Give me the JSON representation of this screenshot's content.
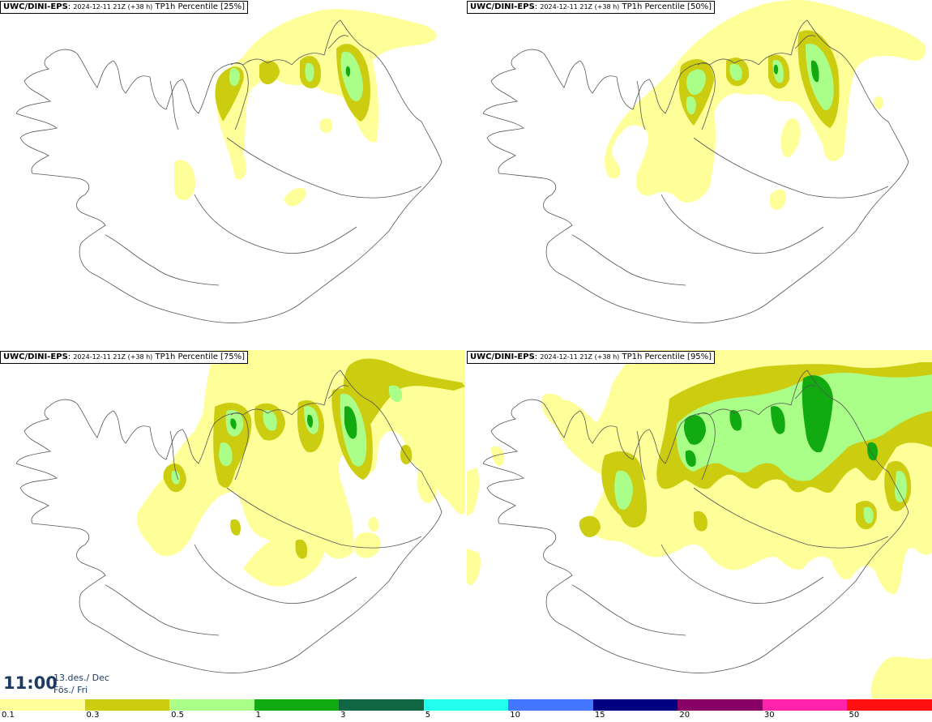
{
  "panels": [
    {
      "source": "UWC/DINI-EPS",
      "run": "2024-12-11 21Z (+38 h)",
      "product": "TP1h Percentile",
      "percentile": "[25%]"
    },
    {
      "source": "UWC/DINI-EPS",
      "run": "2024-12-11 21Z (+38 h)",
      "product": "TP1h Percentile",
      "percentile": "[50%]"
    },
    {
      "source": "UWC/DINI-EPS",
      "run": "2024-12-11 21Z (+38 h)",
      "product": "TP1h Percentile",
      "percentile": "[75%]"
    },
    {
      "source": "UWC/DINI-EPS",
      "run": "2024-12-11 21Z (+38 h)",
      "product": "TP1h Percentile",
      "percentile": "[95%]"
    }
  ],
  "valid_time": {
    "time": "11:00",
    "date": "13.des./ Dec",
    "day": "Fös./ Fri"
  },
  "legend": {
    "colors": [
      "#ffff99",
      "#cccc11",
      "#aaff88",
      "#11aa11",
      "#116644",
      "#22ffee",
      "#4477ff",
      "#000080",
      "#880066",
      "#ff22aa",
      "#ff1111"
    ],
    "labels": [
      "0.1",
      "0.3",
      "0.5",
      "1",
      "3",
      "5",
      "10",
      "15",
      "20",
      "30",
      "50"
    ]
  },
  "colors": {
    "land_outline": "#555555",
    "level1": "#ffff99",
    "level2": "#cccc11",
    "level3": "#aaff88",
    "level4": "#11aa11"
  }
}
